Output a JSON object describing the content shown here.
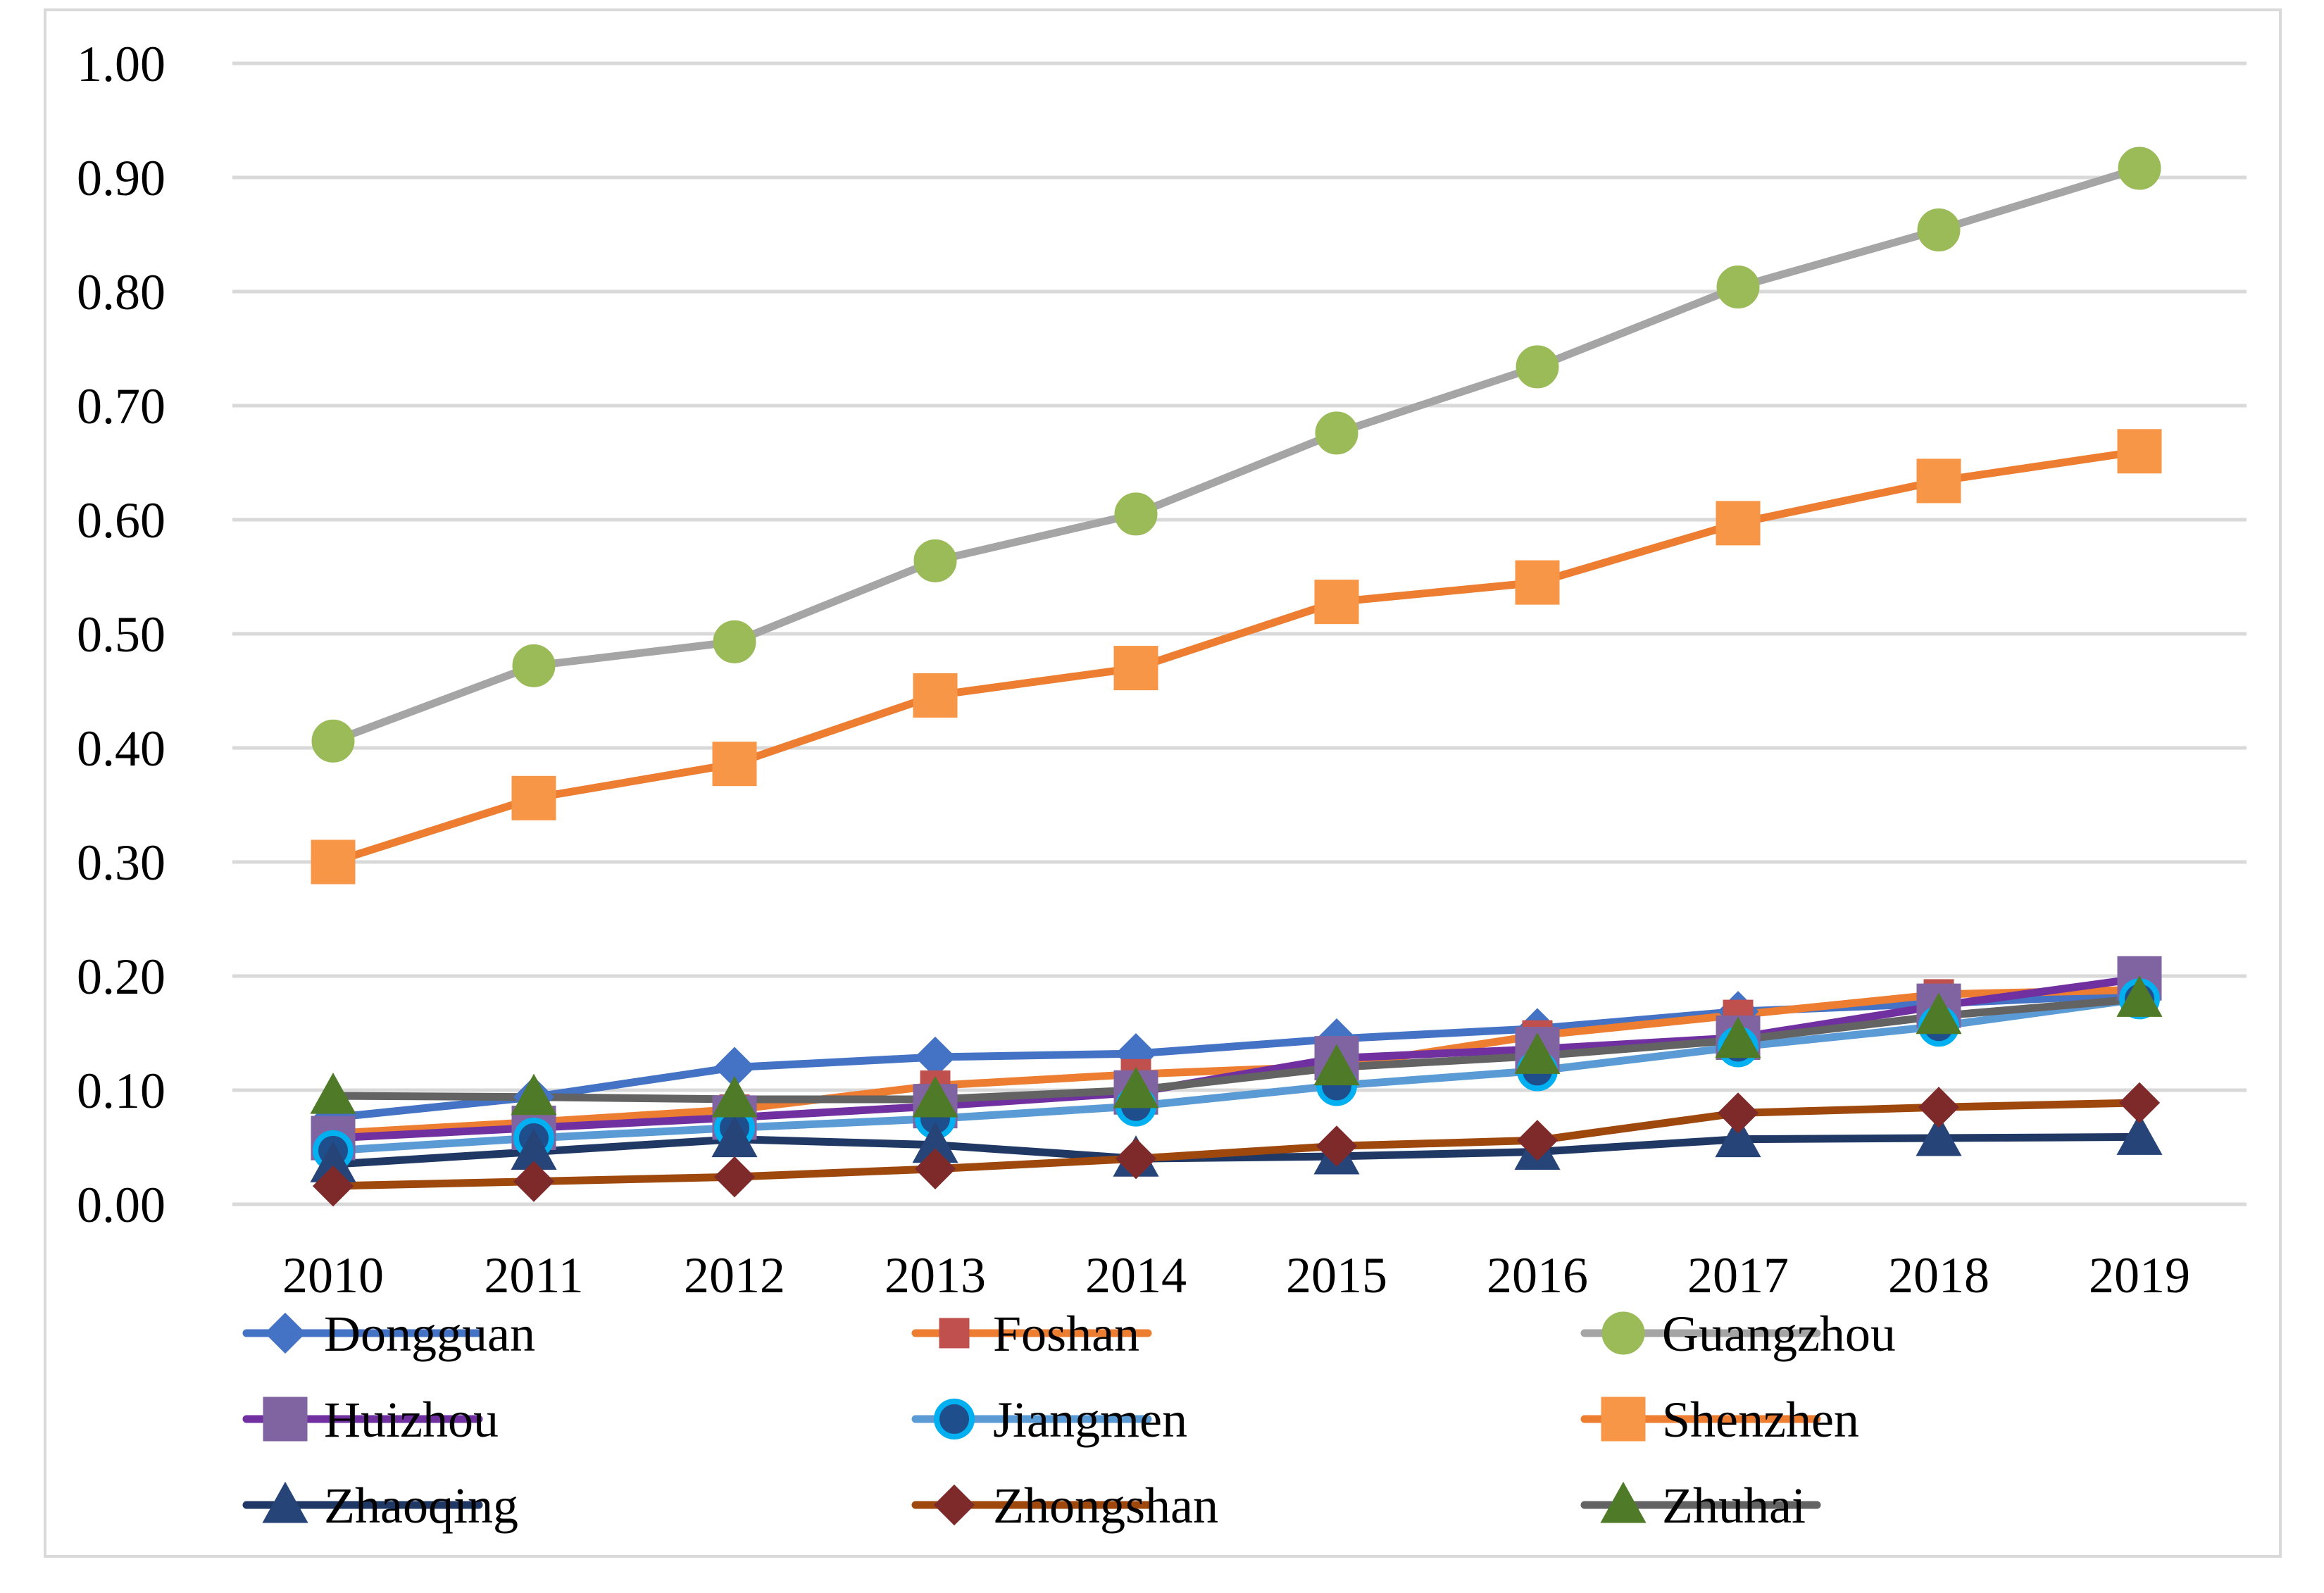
{
  "chart_data": {
    "type": "line",
    "title": "",
    "xlabel": "",
    "ylabel": "",
    "categories": [
      "2010",
      "2011",
      "2012",
      "2013",
      "2014",
      "2015",
      "2016",
      "2017",
      "2018",
      "2019"
    ],
    "ylim": [
      0,
      1
    ],
    "yticks": [
      "0.00",
      "0.10",
      "0.20",
      "0.30",
      "0.40",
      "0.50",
      "0.60",
      "0.70",
      "0.80",
      "0.90",
      "1.00"
    ],
    "grid": true,
    "legend_position": "bottom",
    "series": [
      {
        "name": "Dongguan",
        "color": "#4472C4",
        "marker": "diamond",
        "values": [
          0.076,
          0.094,
          0.12,
          0.129,
          0.132,
          0.145,
          0.154,
          0.169,
          0.176,
          0.184
        ]
      },
      {
        "name": "Foshan",
        "color": "#ED7D31",
        "marker": "square-small",
        "marker_color": "#C0504D",
        "values": [
          0.062,
          0.072,
          0.083,
          0.104,
          0.114,
          0.121,
          0.148,
          0.166,
          0.184,
          0.188
        ]
      },
      {
        "name": "Guangzhou",
        "color": "#A5A5A5",
        "marker": "circle",
        "marker_color": "#9BBB59",
        "values": [
          0.406,
          0.472,
          0.493,
          0.564,
          0.605,
          0.676,
          0.734,
          0.804,
          0.854,
          0.908
        ]
      },
      {
        "name": "Huizhou",
        "color": "#7030A0",
        "marker": "square",
        "marker_color": "#8064A2",
        "values": [
          0.058,
          0.067,
          0.076,
          0.086,
          0.098,
          0.128,
          0.136,
          0.146,
          0.174,
          0.198
        ]
      },
      {
        "name": "Jiangmen",
        "color": "#5B9BD5",
        "marker": "circle-dark",
        "marker_color": "#2E75B6",
        "values": [
          0.047,
          0.058,
          0.067,
          0.075,
          0.086,
          0.104,
          0.117,
          0.138,
          0.156,
          0.18
        ]
      },
      {
        "name": "Shenzhen",
        "color": "#ED7D31",
        "marker": "square",
        "marker_color": "#F79646",
        "values": [
          0.3,
          0.356,
          0.386,
          0.446,
          0.47,
          0.528,
          0.545,
          0.597,
          0.634,
          0.66
        ]
      },
      {
        "name": "Zhaoqing",
        "color": "#203864",
        "marker": "triangle",
        "marker_color": "#264478",
        "values": [
          0.035,
          0.046,
          0.057,
          0.052,
          0.04,
          0.042,
          0.046,
          0.057,
          0.058,
          0.059
        ]
      },
      {
        "name": "Zhongshan",
        "color": "#9E480E",
        "marker": "diamond",
        "marker_color": "#7F2A2A",
        "values": [
          0.016,
          0.02,
          0.024,
          0.031,
          0.04,
          0.051,
          0.056,
          0.08,
          0.085,
          0.089
        ]
      },
      {
        "name": "Zhuhai",
        "color": "#636363",
        "marker": "triangle",
        "marker_color": "#4F7A28",
        "values": [
          0.095,
          0.094,
          0.092,
          0.092,
          0.1,
          0.12,
          0.13,
          0.144,
          0.165,
          0.18
        ]
      }
    ]
  }
}
